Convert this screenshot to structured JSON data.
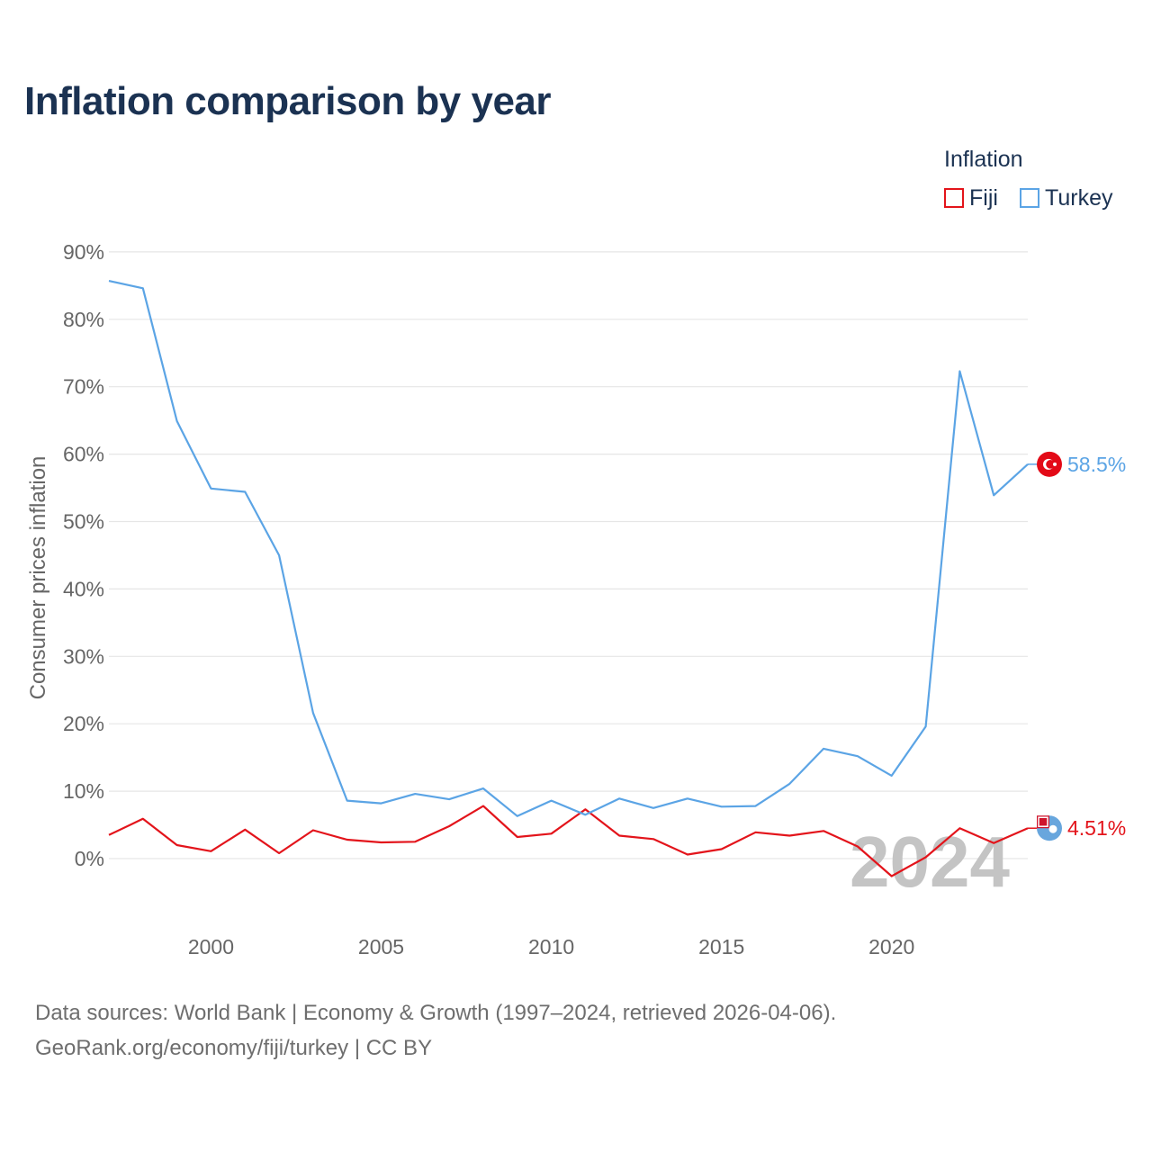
{
  "title": "Inflation comparison by year",
  "legend": {
    "title": "Inflation",
    "items": [
      {
        "label": "Fiji",
        "color": "#e3141b"
      },
      {
        "label": "Turkey",
        "color": "#5ba4e5"
      }
    ]
  },
  "chart_data": {
    "type": "line",
    "title": "Inflation comparison by year",
    "xlabel": "",
    "ylabel": "Consumer prices inflation",
    "x": [
      1997,
      1998,
      1999,
      2000,
      2001,
      2002,
      2003,
      2004,
      2005,
      2006,
      2007,
      2008,
      2009,
      2010,
      2011,
      2012,
      2013,
      2014,
      2015,
      2016,
      2017,
      2018,
      2019,
      2020,
      2021,
      2022,
      2023,
      2024
    ],
    "xlim": [
      1997,
      2024
    ],
    "ylim": [
      -10,
      90
    ],
    "x_ticks": [
      2000,
      2005,
      2010,
      2015,
      2020
    ],
    "x_tick_labels": [
      "2000",
      "2005",
      "2010",
      "2015",
      "2020"
    ],
    "y_ticks": [
      0,
      10,
      20,
      30,
      40,
      50,
      60,
      70,
      80,
      90
    ],
    "y_tick_labels": [
      "0%",
      "10%",
      "20%",
      "30%",
      "40%",
      "50%",
      "60%",
      "70%",
      "80%",
      "90%"
    ],
    "grid": true,
    "legend_position": "top-right",
    "series": [
      {
        "name": "Fiji",
        "color": "#e3141b",
        "values": [
          3.5,
          5.9,
          2.0,
          1.1,
          4.3,
          0.8,
          4.2,
          2.8,
          2.4,
          2.5,
          4.8,
          7.8,
          3.2,
          3.7,
          7.3,
          3.4,
          2.9,
          0.6,
          1.4,
          3.9,
          3.4,
          4.1,
          1.8,
          -2.6,
          0.2,
          4.5,
          2.3,
          4.51
        ],
        "end_label": "4.51%"
      },
      {
        "name": "Turkey",
        "color": "#5ba4e5",
        "values": [
          85.7,
          84.6,
          64.9,
          54.9,
          54.4,
          45.0,
          21.6,
          8.6,
          8.2,
          9.6,
          8.8,
          10.4,
          6.3,
          8.6,
          6.5,
          8.9,
          7.5,
          8.9,
          7.7,
          7.8,
          11.1,
          16.3,
          15.2,
          12.3,
          19.6,
          72.3,
          53.9,
          58.5
        ],
        "end_label": "58.5%"
      }
    ],
    "annotation": "2024"
  },
  "footer": {
    "line1": "Data sources: World Bank | Economy & Growth (1997–2024, retrieved 2026-04-06).",
    "line2": "GeoRank.org/economy/fiji/turkey | CC BY"
  }
}
